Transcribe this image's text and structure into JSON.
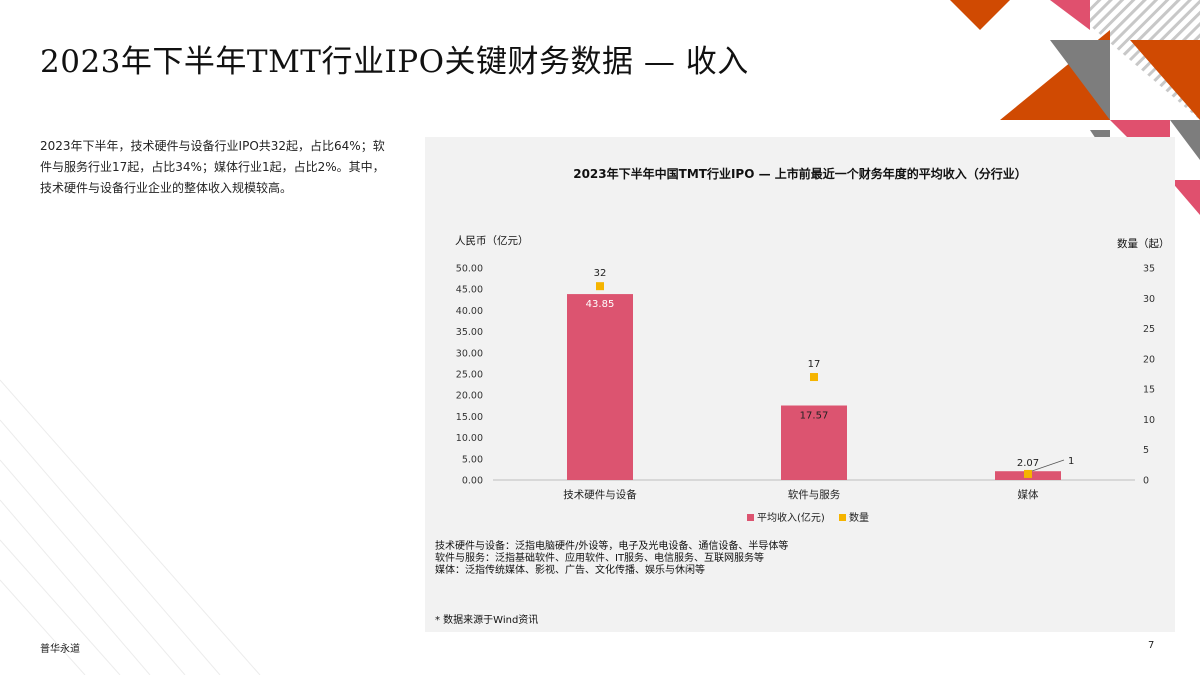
{
  "page": {
    "title": "2023年下半年TMT行业IPO关键财务数据 — 收入",
    "summary": "2023年下半年，技术硬件与设备行业IPO共32起，占比64%；软件与服务行业17起，占比34%；媒体行业1起，占比2%。其中，技术硬件与设备行业企业的整体收入规模较高。",
    "footer_left": "普华永道",
    "page_number": "7"
  },
  "notes": {
    "lines": [
      "技术硬件与设备：泛指电脑硬件/外设等，电子及光电设备、通信设备、半导体等",
      "软件与服务：泛指基础软件、应用软件、IT服务、电信服务、互联网服务等",
      "媒体：泛指传统媒体、影视、广告、文化传播、娱乐与休闲等"
    ],
    "source": "* 数据来源于Wind资讯"
  },
  "colors": {
    "bar": "#dc5470",
    "marker": "#f5b400",
    "panel_bg": "#f2f2f2",
    "accent_orange": "#d04a02",
    "accent_pink": "#e0506e",
    "accent_gray": "#7d7d7d"
  },
  "chart_data": {
    "type": "bar",
    "title": "2023年下半年中国TMT行业IPO — 上市前最近一个财务年度的平均收入（分行业）",
    "categories": [
      "技术硬件与设备",
      "软件与服务",
      "媒体"
    ],
    "ylabel_left": "人民币（亿元）",
    "ylabel_right": "数量（起）",
    "ylim_left": [
      0,
      50
    ],
    "ylim_right": [
      0,
      35
    ],
    "yticks_left": [
      "0.00",
      "5.00",
      "10.00",
      "15.00",
      "20.00",
      "25.00",
      "30.00",
      "35.00",
      "40.00",
      "45.00",
      "50.00"
    ],
    "yticks_right": [
      "0",
      "5",
      "10",
      "15",
      "20",
      "25",
      "30",
      "35"
    ],
    "legend_position": "bottom",
    "series": [
      {
        "name": "平均收入(亿元)",
        "type": "bar",
        "axis": "left",
        "values": [
          43.85,
          17.57,
          2.07
        ],
        "labels": [
          "43.85",
          "17.57",
          "2.07"
        ]
      },
      {
        "name": "数量",
        "type": "scatter",
        "axis": "right",
        "values": [
          32,
          17,
          1
        ],
        "labels": [
          "32",
          "17",
          "1"
        ]
      }
    ]
  }
}
